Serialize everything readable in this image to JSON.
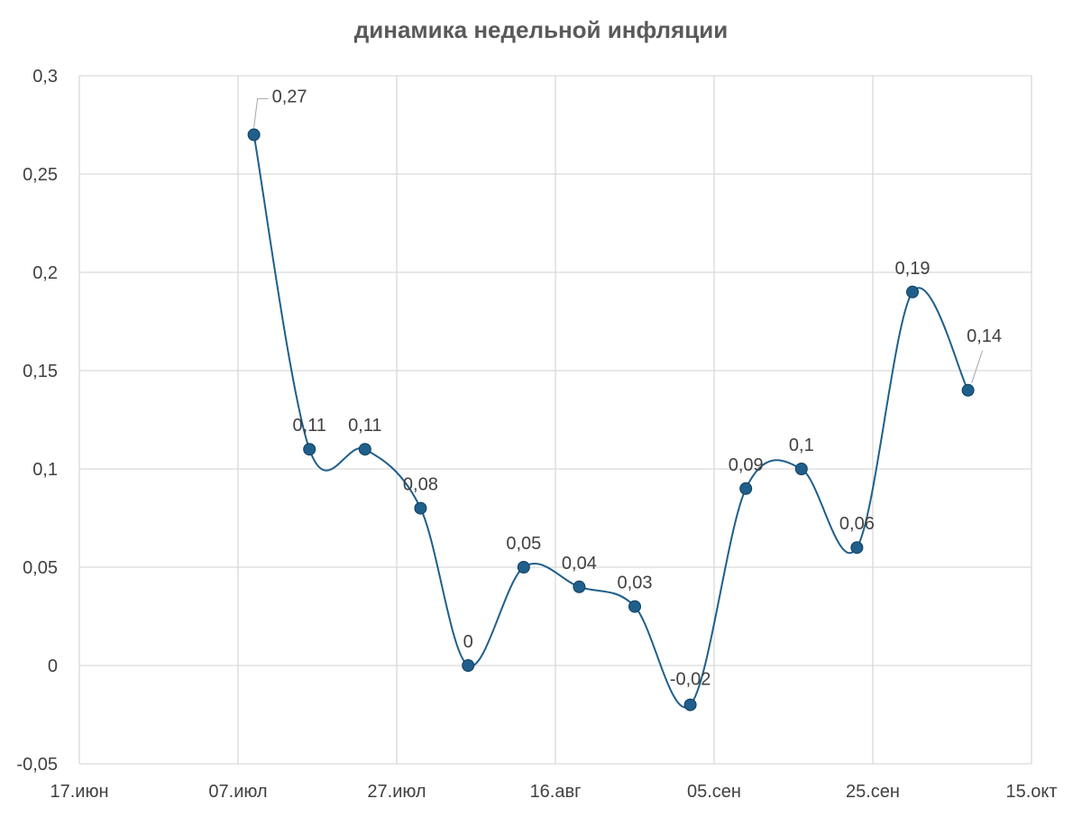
{
  "chart_data": {
    "type": "line",
    "title": "динамика недельной инфляции",
    "xlabel": "",
    "ylabel": "",
    "smooth": true,
    "grid": true,
    "legend": "none",
    "colors": {
      "series": "#1f5f8b",
      "grid": "#d9d9d9",
      "text": "#404040",
      "title": "#595959"
    },
    "x_ticks": [
      "17.июн",
      "07.июл",
      "27.июл",
      "16.авг",
      "05.сен",
      "25.сен",
      "15.окт"
    ],
    "x_tick_dates": [
      "2024-06-17",
      "2024-07-07",
      "2024-07-27",
      "2024-08-16",
      "2024-09-05",
      "2024-09-25",
      "2024-10-15"
    ],
    "xlim": [
      "2024-06-17",
      "2024-10-15"
    ],
    "y_ticks": [
      "-0,05",
      "0",
      "0,05",
      "0,1",
      "0,15",
      "0,2",
      "0,25",
      "0,3"
    ],
    "y_tick_values": [
      -0.05,
      0,
      0.05,
      0.1,
      0.15,
      0.2,
      0.25,
      0.3
    ],
    "ylim": [
      -0.05,
      0.3
    ],
    "series": [
      {
        "x": [
          "2024-07-09",
          "2024-07-16",
          "2024-07-23",
          "2024-07-30",
          "2024-08-05",
          "2024-08-12",
          "2024-08-19",
          "2024-08-26",
          "2024-09-02",
          "2024-09-09",
          "2024-09-16",
          "2024-09-23",
          "2024-09-30",
          "2024-10-07"
        ],
        "values": [
          0.27,
          0.11,
          0.11,
          0.08,
          0,
          0.05,
          0.04,
          0.03,
          -0.02,
          0.09,
          0.1,
          0.06,
          0.19,
          0.14
        ],
        "labels": [
          "0,27",
          "0,11",
          "0,11",
          "0,08",
          "0",
          "0,05",
          "0,04",
          "0,03",
          "-0,02",
          "0,09",
          "0,1",
          "0,06",
          "0,19",
          "0,14"
        ]
      }
    ]
  }
}
